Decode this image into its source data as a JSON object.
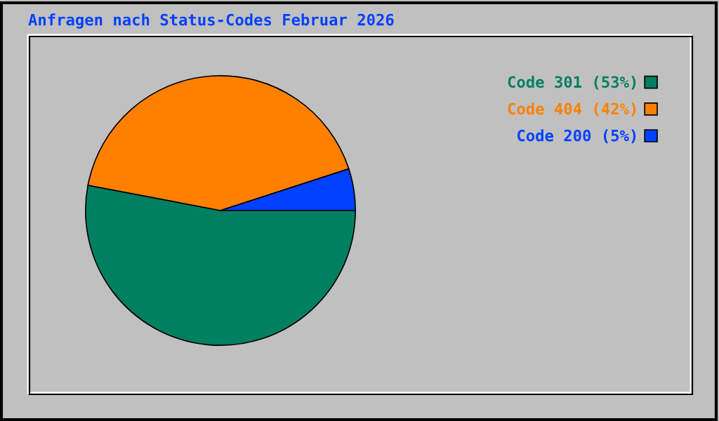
{
  "chart_data": {
    "type": "pie",
    "title": "Anfragen nach Status-Codes Februar 2026",
    "categories": [
      "Code 301",
      "Code 404",
      "Code 200"
    ],
    "values": [
      53,
      42,
      5
    ],
    "value_labels": [
      "(53%)",
      "(42%)",
      "(5%)"
    ],
    "colors": [
      "#008060",
      "#ff8000",
      "#0040ff"
    ],
    "legend": "top right"
  }
}
